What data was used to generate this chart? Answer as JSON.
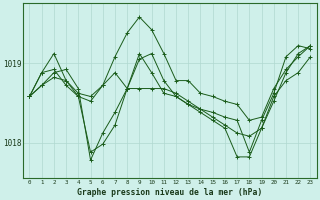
{
  "bg_color": "#cff0ea",
  "line_color": "#1a5c1a",
  "grid_color": "#b0d9d0",
  "title": "Graphe pression niveau de la mer (hPa)",
  "xlim": [
    -0.5,
    23.5
  ],
  "ylim": [
    1017.55,
    1019.75
  ],
  "yticks": [
    1018,
    1019
  ],
  "series": [
    [
      1018.58,
      1018.72,
      1018.88,
      1018.92,
      1018.68,
      1017.78,
      1018.12,
      1018.38,
      1018.68,
      1019.05,
      1019.12,
      1018.78,
      1018.58,
      1018.48,
      1018.42,
      1018.38,
      1018.32,
      1018.28,
      1017.88,
      1018.28,
      1018.62,
      1019.08,
      1019.22,
      1019.18
    ],
    [
      1018.58,
      1018.88,
      1019.12,
      1018.78,
      1018.58,
      1018.52,
      1018.72,
      1019.08,
      1019.38,
      1019.58,
      1019.42,
      1019.12,
      1018.78,
      1018.78,
      1018.62,
      1018.58,
      1018.52,
      1018.48,
      1018.28,
      1018.32,
      1018.68,
      1018.92,
      1019.08,
      1019.22
    ],
    [
      1018.58,
      1018.72,
      1018.82,
      1018.78,
      1018.62,
      1018.58,
      1018.72,
      1018.88,
      1018.68,
      1018.68,
      1018.68,
      1018.68,
      1018.62,
      1018.52,
      1018.42,
      1018.32,
      1018.22,
      1018.12,
      1018.08,
      1018.18,
      1018.58,
      1018.78,
      1018.88,
      1019.08
    ],
    [
      1018.58,
      1018.88,
      1018.92,
      1018.72,
      1018.58,
      1017.88,
      1017.98,
      1018.22,
      1018.68,
      1019.12,
      1018.88,
      1018.62,
      1018.58,
      1018.48,
      1018.38,
      1018.28,
      1018.18,
      1017.82,
      1017.82,
      1018.18,
      1018.52,
      1018.88,
      1019.12,
      1019.22
    ]
  ]
}
